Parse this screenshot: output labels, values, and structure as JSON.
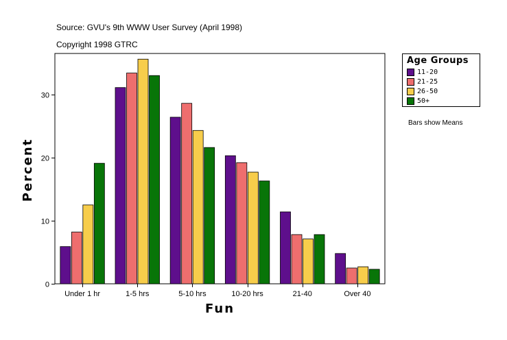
{
  "header": {
    "source": "Source: GVU's 9th WWW User Survey (April 1998)",
    "copyright": "Copyright 1998 GTRC"
  },
  "note": "Bars show Means",
  "colors": {
    "11-20": "#5e0f8c",
    "21-25": "#ee6e6e",
    "26-50": "#f7cd4b",
    "50+": "#087508"
  },
  "chart_data": {
    "type": "bar",
    "title": "",
    "xlabel": "Fun",
    "ylabel": "Percent",
    "categories": [
      "Under 1 hr",
      "1-5 hrs",
      "5-10 hrs",
      "10-20 hrs",
      "21-40",
      "Over 40"
    ],
    "series": [
      {
        "name": "11-20",
        "values": [
          5.9,
          31.1,
          26.4,
          20.3,
          11.4,
          4.8
        ]
      },
      {
        "name": "21-25",
        "values": [
          8.2,
          33.4,
          28.6,
          19.2,
          7.8,
          2.5
        ]
      },
      {
        "name": "26-50",
        "values": [
          12.5,
          35.6,
          24.3,
          17.7,
          7.1,
          2.7
        ]
      },
      {
        "name": "50+",
        "values": [
          19.1,
          33.0,
          21.6,
          16.3,
          7.8,
          2.3
        ]
      }
    ],
    "ylim": [
      0,
      36.5
    ],
    "yticks": [
      0,
      10,
      20,
      30
    ],
    "legend": {
      "title": "Age Groups",
      "position": "right"
    },
    "grid": false
  }
}
